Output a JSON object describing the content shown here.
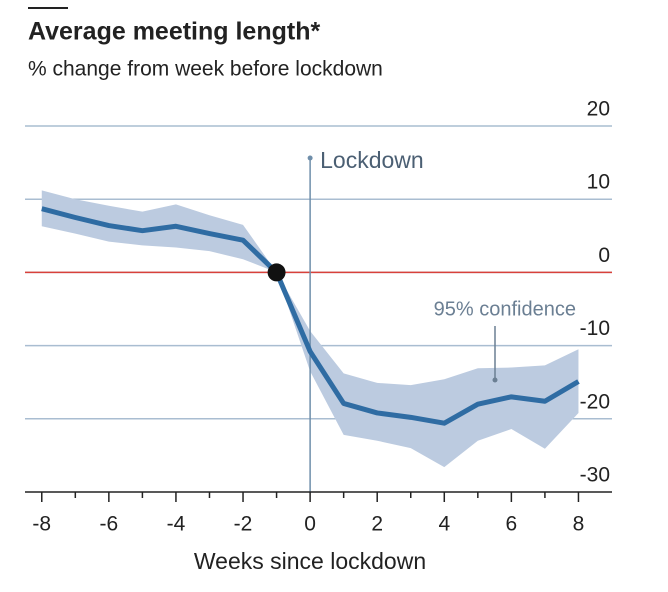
{
  "chart_data": {
    "type": "line",
    "title": "Average meeting length*",
    "subtitle": "% change from week before lockdown",
    "x_label": "Weeks since lockdown",
    "x": [
      -8,
      -7,
      -6,
      -5,
      -4,
      -3,
      -2,
      -1,
      0,
      1,
      2,
      3,
      4,
      5,
      6,
      7,
      8
    ],
    "series": [
      {
        "color": "#2f6ca3",
        "values": [
          8.7,
          7.5,
          6.4,
          5.7,
          6.3,
          5.3,
          4.4,
          0,
          -10.8,
          -17.9,
          -19.2,
          -19.8,
          -20.6,
          -18,
          -17,
          -17.6,
          -14.9
        ]
      }
    ],
    "band": {
      "color": "#bccbe0",
      "upper": [
        11.2,
        10,
        9.1,
        8.3,
        9.3,
        7.8,
        6.5,
        0,
        -8,
        -13.8,
        -15.1,
        -15.4,
        -14.6,
        -13.1,
        -13,
        -12.7,
        -10.5
      ],
      "lower": [
        6.3,
        5.3,
        4.2,
        3.7,
        3.4,
        2.9,
        1.8,
        0,
        -13.5,
        -22.2,
        -23,
        -24,
        -26.6,
        -23,
        -21.4,
        -24.1,
        -19.2
      ]
    },
    "annotations": [
      "Lockdown",
      "95% confidence"
    ],
    "vline": 0,
    "hline": 0,
    "marker_x": -1,
    "marker_y": 0,
    "xlim": [
      -8.5,
      9
    ],
    "ylim": [
      -30,
      20
    ],
    "xticks": [
      -8,
      -6,
      -4,
      -2,
      0,
      2,
      4,
      6,
      8
    ],
    "xminor_ticks": [
      -7,
      -5,
      -3,
      -1,
      1,
      3,
      5,
      7
    ],
    "yticks": [
      -30,
      -20,
      -10,
      0,
      10,
      20
    ],
    "grid": true
  }
}
